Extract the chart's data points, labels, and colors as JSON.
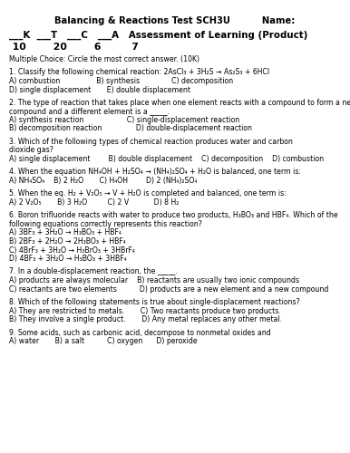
{
  "title_left": "    Balancing & Reactions Test SCH3U",
  "title_right": "Name:",
  "subtitle": "___K  ___T   ___C   ___A    Assessment of Learning (Product)",
  "scores": " 10       20       6        7",
  "body_lines": [
    "Multiple Choice: Circle the most correct answer. (10K)",
    "",
    "1. Classify the following chemical reaction: 2AsCl₃ + 3H₂S → As₂S₃ + 6HCl",
    "A) combustion                B) synthesis              C) decomposition",
    "D) single displacement       E) double displacement",
    "",
    "2. The type of reaction that takes place when one element reacts with a compound to form a new",
    "compound and a different element is a _____.",
    "A) synthesis reaction                   C) single-displacement reaction",
    "B) decomposition reaction               D) double-displacement reaction",
    "",
    "3. Which of the following types of chemical reaction produces water and carbon",
    "dioxide gas?",
    "A) single displacement        B) double displacement    C) decomposition    D) combustion",
    "",
    "4. When the equation NH₄OH + H₂SO₄ → (NH₄)₂SO₄ + H₂O is balanced, one term is:",
    "A) NH₄SO₄    B) 2 H₂O       C) H₄OH        D) 2 (NH₄)₂SO₄",
    "",
    "5. When the eq. H₂ + V₂O₅ → V + H₂O is completed and balanced, one term is:",
    "A) 2 V₂O₅       B) 3 H₂O         C) 2 V           D) 8 H₂",
    "",
    "6. Boron trifluoride reacts with water to produce two products, H₃BO₃ and HBF₄. Which of the",
    "following equations correctly represents this reaction?",
    "A) 3BF₃ + 3H₂O → H₃BO₃ + HBF₄",
    "B) 2BF₃ + 2H₂O → 2H₃BO₃ + HBF₄",
    "C) 4BrF₃ + 3H₂O → H₃BrO₃ + 3HBrF₄",
    "D) 4BF₃ + 3H₂O → H₃BO₃ + 3HBF₄",
    "",
    "7. In a double-displacement reaction, the _____.",
    "A) products are always molecular    B) reactants are usually two ionic compounds",
    "C) reactants are two elements          D) products are a new element and a new compound",
    "",
    "8. Which of the following statements is true about single-displacement reactions?",
    "A) They are restricted to metals.       C) Two reactants produce two products.",
    "B) They involve a single product.       D) Any metal replaces any other metal.",
    "",
    "9. Some acids, such as carbonic acid, decompose to nonmetal oxides and",
    "A) water       B) a salt          C) oxygen      D) peroxide"
  ],
  "bg_color": "#ffffff",
  "text_color": "#000000",
  "title_fontsize": 7.2,
  "body_fontsize": 5.6,
  "subtitle_fontsize": 7.4,
  "scores_fontsize": 7.8
}
